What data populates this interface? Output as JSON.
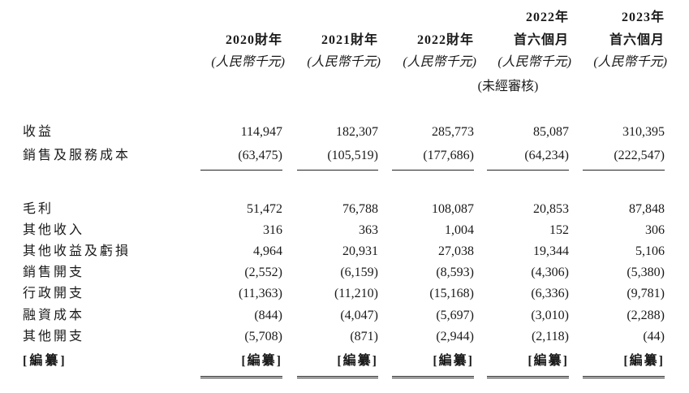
{
  "table": {
    "columns": [
      {
        "heading": [
          "2020財年"
        ],
        "unit": "(人民幣千元)"
      },
      {
        "heading": [
          "2021財年"
        ],
        "unit": "(人民幣千元)"
      },
      {
        "heading": [
          "2022財年"
        ],
        "unit": "(人民幣千元)"
      },
      {
        "heading": [
          "2022年",
          "首六個月"
        ],
        "unit": "(人民幣千元)",
        "note": "(未經審核)"
      },
      {
        "heading": [
          "2023年",
          "首六個月"
        ],
        "unit": "(人民幣千元)"
      }
    ],
    "rows": [
      {
        "label": "收益",
        "values": [
          "114,947",
          "182,307",
          "285,773",
          "85,087",
          "310,395"
        ]
      },
      {
        "label": "銷售及服務成本",
        "values": [
          "(63,475)",
          "(105,519)",
          "(177,686)",
          "(64,234)",
          "(222,547)"
        ]
      },
      {
        "label": "毛利",
        "values": [
          "51,472",
          "76,788",
          "108,087",
          "20,853",
          "87,848"
        ]
      },
      {
        "label": "其他收入",
        "values": [
          "316",
          "363",
          "1,004",
          "152",
          "306"
        ]
      },
      {
        "label": "其他收益及虧損",
        "values": [
          "4,964",
          "20,931",
          "27,038",
          "19,344",
          "5,106"
        ]
      },
      {
        "label": "銷售開支",
        "values": [
          "(2,552)",
          "(6,159)",
          "(8,593)",
          "(4,306)",
          "(5,380)"
        ]
      },
      {
        "label": "行政開支",
        "values": [
          "(11,363)",
          "(11,210)",
          "(15,168)",
          "(6,336)",
          "(9,781)"
        ]
      },
      {
        "label": "融資成本",
        "values": [
          "(844)",
          "(4,047)",
          "(5,697)",
          "(3,010)",
          "(2,288)"
        ]
      },
      {
        "label": "其他開支",
        "values": [
          "(5,708)",
          "(871)",
          "(2,944)",
          "(2,118)",
          "(44)"
        ]
      },
      {
        "label": "[編纂]",
        "values": [
          "[編纂]",
          "[編纂]",
          "[編纂]",
          "[編纂]",
          "[編纂]"
        ]
      }
    ]
  }
}
